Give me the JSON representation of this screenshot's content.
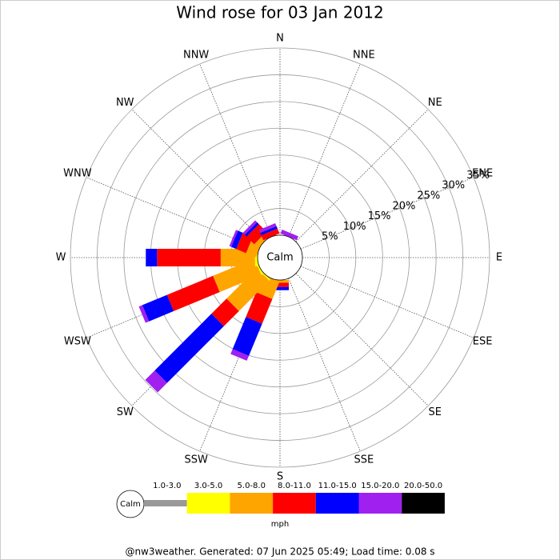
{
  "chart_data": {
    "type": "windrose",
    "title": "Wind rose for 03 Jan 2012",
    "categories": [
      "N",
      "NNE",
      "NE",
      "ENE",
      "E",
      "ESE",
      "SE",
      "SSE",
      "S",
      "SSW",
      "SW",
      "WSW",
      "W",
      "WNW",
      "NW",
      "NNW"
    ],
    "calm_label": "Calm",
    "ylim": [
      0,
      35
    ],
    "yticks": [
      {
        "value": 5,
        "label": "5%"
      },
      {
        "value": 10,
        "label": "10%"
      },
      {
        "value": 15,
        "label": "15%"
      },
      {
        "value": 20,
        "label": "20%"
      },
      {
        "value": 25,
        "label": "25%"
      },
      {
        "value": 30,
        "label": "30%"
      },
      {
        "value": 35,
        "label": "35%"
      }
    ],
    "series": [
      {
        "name": "1.0-3.0",
        "color": "#999999",
        "values": [
          0,
          0,
          0,
          0,
          0,
          0,
          0,
          0,
          0,
          0,
          0,
          0,
          0,
          0,
          0,
          0
        ]
      },
      {
        "name": "3.0-5.0",
        "color": "#ffff00",
        "values": [
          0,
          0,
          0,
          0,
          0,
          0,
          0,
          0,
          0,
          0,
          0.3,
          0.3,
          0.5,
          0,
          0,
          0
        ]
      },
      {
        "name": "5.0-8.0",
        "color": "#ffa500",
        "values": [
          0,
          0,
          0,
          0,
          0,
          0,
          0,
          0,
          0.5,
          3.5,
          8,
          8.4,
          6.4,
          2,
          1,
          0
        ]
      },
      {
        "name": "8.0-11.0",
        "color": "#ff0000",
        "values": [
          0,
          0,
          0,
          0,
          0,
          0,
          0,
          0,
          0.8,
          5,
          4,
          9.3,
          11.9,
          2,
          2,
          1
        ]
      },
      {
        "name": "11.0-15.0",
        "color": "#0000ff",
        "values": [
          0,
          0,
          0,
          0,
          0,
          0,
          0,
          0,
          0.6,
          6.5,
          15,
          5,
          2.1,
          1,
          0.5,
          0.5
        ]
      },
      {
        "name": "15.0-20.0",
        "color": "#a020f0",
        "values": [
          0,
          0.8,
          0,
          0,
          0,
          0,
          0,
          0,
          0,
          1,
          2.5,
          0.7,
          0,
          0.4,
          0.5,
          0.6
        ]
      },
      {
        "name": "20.0-50.0",
        "color": "#000000",
        "values": [
          0,
          0,
          0,
          0,
          0,
          0,
          0,
          0,
          0,
          0,
          0,
          0,
          0,
          0,
          0,
          0
        ]
      }
    ],
    "legend_unit": "mph",
    "footer": "@nw3weather. Generated: 07 Jun 2025 05:49; Load time: 0.08 s"
  }
}
